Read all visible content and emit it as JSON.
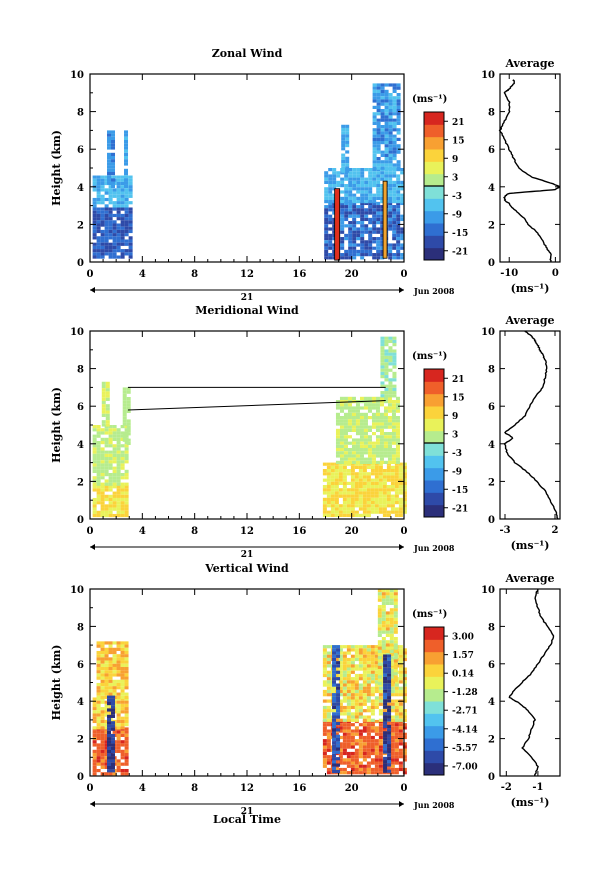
{
  "figure": {
    "xlabel": "Local Time",
    "date_label": "Jun 2008",
    "day_label": "21"
  },
  "colors": {
    "scale": [
      "#2b2f7a",
      "#2e4aa8",
      "#2f6fd1",
      "#3b9be8",
      "#52c3ef",
      "#7fe0d8",
      "#b6ec8e",
      "#e9f25a",
      "#fbd33b",
      "#f8a032",
      "#ef5f2a",
      "#d7261f"
    ]
  },
  "chart_data": [
    {
      "type": "heatmap",
      "title": "Zonal Wind",
      "ylabel": "Height (km)",
      "xlim": [
        0,
        24
      ],
      "ylim": [
        0,
        10
      ],
      "xticks": [
        "0",
        "4",
        "8",
        "12",
        "16",
        "20",
        "0"
      ],
      "yticks": [
        "0",
        "2",
        "4",
        "6",
        "8",
        "10"
      ],
      "colorbar": {
        "unit": "(ms⁻¹)",
        "ticks": [
          "21",
          "15",
          "9",
          "3",
          "-3",
          "-9",
          "-15",
          "-21"
        ],
        "range": [
          -24,
          24
        ],
        "marker": 0
      },
      "profile": {
        "title": "Average",
        "xlabel": "(ms⁻¹)",
        "xlim": [
          -12,
          1
        ],
        "xticks": [
          -10,
          0
        ],
        "xtick_labels": [
          "-10",
          "0"
        ],
        "yticks": [
          "0",
          "2",
          "4",
          "6",
          "8",
          "10"
        ],
        "x": [
          -1,
          -1,
          -2,
          -3,
          -4,
          -6,
          -7,
          -9,
          -10,
          -11,
          -11,
          -10,
          -5,
          0,
          1,
          -1,
          -5,
          -8,
          -9,
          -10,
          -11,
          -12,
          -11,
          -10,
          -10,
          -11,
          -10,
          -9,
          -9
        ],
        "y": [
          0,
          0.4,
          0.8,
          1.2,
          1.6,
          2.0,
          2.4,
          2.8,
          3.1,
          3.3,
          3.5,
          3.65,
          3.75,
          3.85,
          4.0,
          4.2,
          4.5,
          5.0,
          5.5,
          6.0,
          6.5,
          7.0,
          7.5,
          8.0,
          8.5,
          9.0,
          9.2,
          9.5,
          9.7
        ]
      }
    },
    {
      "type": "heatmap",
      "title": "Meridional Wind",
      "ylabel": "Height (km)",
      "xlim": [
        0,
        24
      ],
      "ylim": [
        0,
        10
      ],
      "xticks": [
        "0",
        "4",
        "8",
        "12",
        "16",
        "20",
        "0"
      ],
      "yticks": [
        "0",
        "2",
        "4",
        "6",
        "8",
        "10"
      ],
      "colorbar": {
        "unit": "(ms⁻¹)",
        "ticks": [
          "21",
          "15",
          "9",
          "3",
          "-3",
          "-9",
          "-15",
          "-21"
        ],
        "range": [
          -24,
          24
        ],
        "marker": 0
      },
      "profile": {
        "title": "Average",
        "xlabel": "(ms⁻¹)",
        "xlim": [
          -3.5,
          2.5
        ],
        "xticks": [
          -3,
          2
        ],
        "xtick_labels": [
          "-3",
          "2"
        ],
        "yticks": [
          "0",
          "2",
          "4",
          "6",
          "8",
          "10"
        ],
        "x": [
          2.3,
          2,
          1.5,
          1,
          0.2,
          -0.8,
          -2,
          -2.8,
          -3,
          -2.2,
          -3,
          -2,
          -1,
          -0.5,
          0,
          0.8,
          1,
          1.2,
          1,
          0.7,
          0.5,
          0.2,
          0,
          -0.5,
          -1
        ],
        "y": [
          0,
          0.5,
          1.0,
          1.5,
          2.0,
          2.5,
          3.0,
          3.5,
          4.0,
          4.3,
          4.6,
          5.0,
          5.5,
          6.0,
          6.5,
          7.0,
          7.5,
          8.0,
          8.5,
          8.8,
          9.0,
          9.3,
          9.5,
          9.8,
          10.0
        ]
      }
    },
    {
      "type": "heatmap",
      "title": "Vertical Wind",
      "ylabel": "Height (km)",
      "xlim": [
        0,
        24
      ],
      "ylim": [
        0,
        10
      ],
      "xticks": [
        "0",
        "4",
        "8",
        "12",
        "16",
        "20",
        "0"
      ],
      "yticks": [
        "0",
        "2",
        "4",
        "6",
        "8",
        "10"
      ],
      "colorbar": {
        "unit": "(ms⁻¹)",
        "ticks": [
          "3.00",
          "1.57",
          "0.14",
          "-1.28",
          "-2.71",
          "-4.14",
          "-5.57",
          "-7.00"
        ],
        "range": [
          -7.7,
          3.7
        ]
      },
      "profile": {
        "title": "Average",
        "xlabel": "(ms⁻¹)",
        "xlim": [
          -2.2,
          -0.3
        ],
        "xticks": [
          -2,
          -1
        ],
        "xtick_labels": [
          "-2",
          "-1"
        ],
        "yticks": [
          "0",
          "2",
          "4",
          "6",
          "8",
          "10"
        ],
        "x": [
          -1.1,
          -1.0,
          -1.2,
          -1.5,
          -1.3,
          -1.2,
          -1.1,
          -1.3,
          -1.6,
          -1.9,
          -1.8,
          -1.5,
          -1.2,
          -1.0,
          -0.8,
          -0.6,
          -0.5,
          -0.7,
          -0.9,
          -1.0,
          -1.1,
          -1.0
        ],
        "y": [
          0,
          0.5,
          1.0,
          1.5,
          2.0,
          2.5,
          3.0,
          3.5,
          3.9,
          4.2,
          4.5,
          5.0,
          5.5,
          6.0,
          6.5,
          7.0,
          7.5,
          8.0,
          8.5,
          9.0,
          9.5,
          10.0
        ]
      }
    }
  ]
}
